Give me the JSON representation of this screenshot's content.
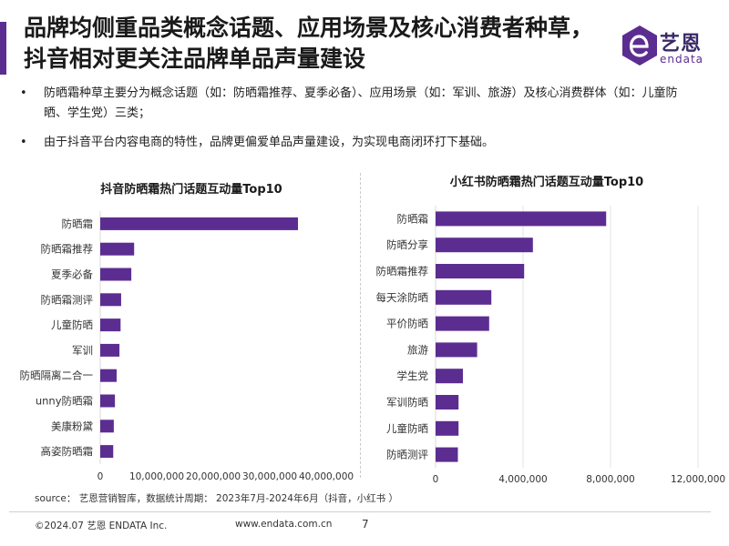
{
  "header": {
    "title": "品牌均侧重品类概念话题、应用场景及核心消费者种草，抖音相对更关注品牌单品声量建设",
    "accent_color": "#5c2d91",
    "logo_cn": "艺恩",
    "logo_en": "endata"
  },
  "bullets": [
    {
      "marker": "•",
      "text": "防晒霜种草主要分为概念话题（如：防晒霜推荐、夏季必备）、应用场景（如：军训、旅游）及核心消费群体（如：儿童防晒、学生党）三类；"
    },
    {
      "marker": "•",
      "text": "由于抖音平台内容电商的特性，品牌更偏爱单品声量建设，为实现电商闭环打下基础。"
    }
  ],
  "chart_data": [
    {
      "type": "bar",
      "orientation": "horizontal",
      "title": "抖音防晒霜热门话题互动量Top10",
      "categories": [
        "防晒霜",
        "防晒霜推荐",
        "夏季必备",
        "防晒霜测评",
        "儿童防晒",
        "军训",
        "防晒隔离二合一",
        "unny防晒霜",
        "美康粉黛",
        "高姿防晒霜"
      ],
      "values": [
        35000000,
        6000000,
        5500000,
        3700000,
        3600000,
        3400000,
        2900000,
        2600000,
        2400000,
        2300000
      ],
      "xlim": [
        0,
        40000000
      ],
      "xticks": [
        "0",
        "10,000,000",
        "20,000,000",
        "30,000,000",
        "40,000,000"
      ],
      "grid": false,
      "bar_color": "#5c2d91"
    },
    {
      "type": "bar",
      "orientation": "horizontal",
      "title": "小红书防晒霜热门话题互动量Top10",
      "categories": [
        "防晒霜",
        "防晒分享",
        "防晒霜推荐",
        "每天涂防晒",
        "平价防晒",
        "旅游",
        "学生党",
        "军训防晒",
        "儿童防晒",
        "防晒测评"
      ],
      "values": [
        7800000,
        4450000,
        4050000,
        2550000,
        2450000,
        1900000,
        1250000,
        1050000,
        1050000,
        1020000
      ],
      "xlim": [
        0,
        12000000
      ],
      "xticks": [
        "0",
        "4,000,000",
        "8,000,000",
        "12,000,000"
      ],
      "grid": true,
      "bar_color": "#5c2d91"
    }
  ],
  "source": "source： 艺恩营销智库，数据统计周期： 2023年7月-2024年6月（抖音，小红书 ）",
  "footer": {
    "copyright": "©2024.07 艺恩 ENDATA Inc.",
    "website": "www.endata.com.cn",
    "page_number": "7"
  }
}
